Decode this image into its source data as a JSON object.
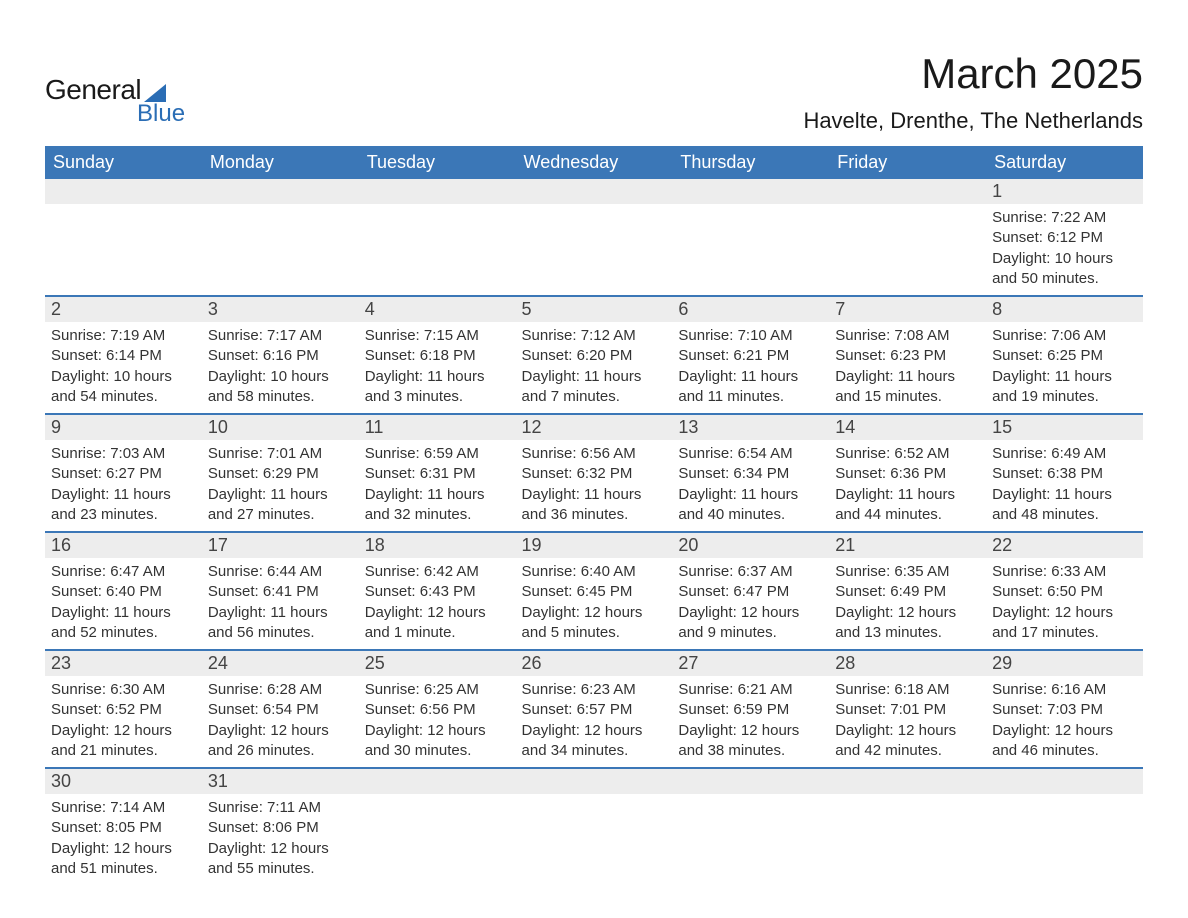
{
  "logo": {
    "word1": "General",
    "word2": "Blue"
  },
  "title": "March 2025",
  "location": "Havelte, Drenthe, The Netherlands",
  "colors": {
    "header_bg": "#3b77b7",
    "header_text": "#ffffff",
    "daynum_bg": "#ededed",
    "row_border": "#3b77b7",
    "text": "#333333",
    "logo_accent": "#2a6db5"
  },
  "fonts": {
    "title_pt": 42,
    "location_pt": 22,
    "weekday_pt": 18,
    "daynum_pt": 18,
    "body_pt": 15
  },
  "weekdays": [
    "Sunday",
    "Monday",
    "Tuesday",
    "Wednesday",
    "Thursday",
    "Friday",
    "Saturday"
  ],
  "weeks": [
    [
      null,
      null,
      null,
      null,
      null,
      null,
      {
        "day": "1",
        "sunrise": "Sunrise: 7:22 AM",
        "sunset": "Sunset: 6:12 PM",
        "daylight1": "Daylight: 10 hours",
        "daylight2": "and 50 minutes."
      }
    ],
    [
      {
        "day": "2",
        "sunrise": "Sunrise: 7:19 AM",
        "sunset": "Sunset: 6:14 PM",
        "daylight1": "Daylight: 10 hours",
        "daylight2": "and 54 minutes."
      },
      {
        "day": "3",
        "sunrise": "Sunrise: 7:17 AM",
        "sunset": "Sunset: 6:16 PM",
        "daylight1": "Daylight: 10 hours",
        "daylight2": "and 58 minutes."
      },
      {
        "day": "4",
        "sunrise": "Sunrise: 7:15 AM",
        "sunset": "Sunset: 6:18 PM",
        "daylight1": "Daylight: 11 hours",
        "daylight2": "and 3 minutes."
      },
      {
        "day": "5",
        "sunrise": "Sunrise: 7:12 AM",
        "sunset": "Sunset: 6:20 PM",
        "daylight1": "Daylight: 11 hours",
        "daylight2": "and 7 minutes."
      },
      {
        "day": "6",
        "sunrise": "Sunrise: 7:10 AM",
        "sunset": "Sunset: 6:21 PM",
        "daylight1": "Daylight: 11 hours",
        "daylight2": "and 11 minutes."
      },
      {
        "day": "7",
        "sunrise": "Sunrise: 7:08 AM",
        "sunset": "Sunset: 6:23 PM",
        "daylight1": "Daylight: 11 hours",
        "daylight2": "and 15 minutes."
      },
      {
        "day": "8",
        "sunrise": "Sunrise: 7:06 AM",
        "sunset": "Sunset: 6:25 PM",
        "daylight1": "Daylight: 11 hours",
        "daylight2": "and 19 minutes."
      }
    ],
    [
      {
        "day": "9",
        "sunrise": "Sunrise: 7:03 AM",
        "sunset": "Sunset: 6:27 PM",
        "daylight1": "Daylight: 11 hours",
        "daylight2": "and 23 minutes."
      },
      {
        "day": "10",
        "sunrise": "Sunrise: 7:01 AM",
        "sunset": "Sunset: 6:29 PM",
        "daylight1": "Daylight: 11 hours",
        "daylight2": "and 27 minutes."
      },
      {
        "day": "11",
        "sunrise": "Sunrise: 6:59 AM",
        "sunset": "Sunset: 6:31 PM",
        "daylight1": "Daylight: 11 hours",
        "daylight2": "and 32 minutes."
      },
      {
        "day": "12",
        "sunrise": "Sunrise: 6:56 AM",
        "sunset": "Sunset: 6:32 PM",
        "daylight1": "Daylight: 11 hours",
        "daylight2": "and 36 minutes."
      },
      {
        "day": "13",
        "sunrise": "Sunrise: 6:54 AM",
        "sunset": "Sunset: 6:34 PM",
        "daylight1": "Daylight: 11 hours",
        "daylight2": "and 40 minutes."
      },
      {
        "day": "14",
        "sunrise": "Sunrise: 6:52 AM",
        "sunset": "Sunset: 6:36 PM",
        "daylight1": "Daylight: 11 hours",
        "daylight2": "and 44 minutes."
      },
      {
        "day": "15",
        "sunrise": "Sunrise: 6:49 AM",
        "sunset": "Sunset: 6:38 PM",
        "daylight1": "Daylight: 11 hours",
        "daylight2": "and 48 minutes."
      }
    ],
    [
      {
        "day": "16",
        "sunrise": "Sunrise: 6:47 AM",
        "sunset": "Sunset: 6:40 PM",
        "daylight1": "Daylight: 11 hours",
        "daylight2": "and 52 minutes."
      },
      {
        "day": "17",
        "sunrise": "Sunrise: 6:44 AM",
        "sunset": "Sunset: 6:41 PM",
        "daylight1": "Daylight: 11 hours",
        "daylight2": "and 56 minutes."
      },
      {
        "day": "18",
        "sunrise": "Sunrise: 6:42 AM",
        "sunset": "Sunset: 6:43 PM",
        "daylight1": "Daylight: 12 hours",
        "daylight2": "and 1 minute."
      },
      {
        "day": "19",
        "sunrise": "Sunrise: 6:40 AM",
        "sunset": "Sunset: 6:45 PM",
        "daylight1": "Daylight: 12 hours",
        "daylight2": "and 5 minutes."
      },
      {
        "day": "20",
        "sunrise": "Sunrise: 6:37 AM",
        "sunset": "Sunset: 6:47 PM",
        "daylight1": "Daylight: 12 hours",
        "daylight2": "and 9 minutes."
      },
      {
        "day": "21",
        "sunrise": "Sunrise: 6:35 AM",
        "sunset": "Sunset: 6:49 PM",
        "daylight1": "Daylight: 12 hours",
        "daylight2": "and 13 minutes."
      },
      {
        "day": "22",
        "sunrise": "Sunrise: 6:33 AM",
        "sunset": "Sunset: 6:50 PM",
        "daylight1": "Daylight: 12 hours",
        "daylight2": "and 17 minutes."
      }
    ],
    [
      {
        "day": "23",
        "sunrise": "Sunrise: 6:30 AM",
        "sunset": "Sunset: 6:52 PM",
        "daylight1": "Daylight: 12 hours",
        "daylight2": "and 21 minutes."
      },
      {
        "day": "24",
        "sunrise": "Sunrise: 6:28 AM",
        "sunset": "Sunset: 6:54 PM",
        "daylight1": "Daylight: 12 hours",
        "daylight2": "and 26 minutes."
      },
      {
        "day": "25",
        "sunrise": "Sunrise: 6:25 AM",
        "sunset": "Sunset: 6:56 PM",
        "daylight1": "Daylight: 12 hours",
        "daylight2": "and 30 minutes."
      },
      {
        "day": "26",
        "sunrise": "Sunrise: 6:23 AM",
        "sunset": "Sunset: 6:57 PM",
        "daylight1": "Daylight: 12 hours",
        "daylight2": "and 34 minutes."
      },
      {
        "day": "27",
        "sunrise": "Sunrise: 6:21 AM",
        "sunset": "Sunset: 6:59 PM",
        "daylight1": "Daylight: 12 hours",
        "daylight2": "and 38 minutes."
      },
      {
        "day": "28",
        "sunrise": "Sunrise: 6:18 AM",
        "sunset": "Sunset: 7:01 PM",
        "daylight1": "Daylight: 12 hours",
        "daylight2": "and 42 minutes."
      },
      {
        "day": "29",
        "sunrise": "Sunrise: 6:16 AM",
        "sunset": "Sunset: 7:03 PM",
        "daylight1": "Daylight: 12 hours",
        "daylight2": "and 46 minutes."
      }
    ],
    [
      {
        "day": "30",
        "sunrise": "Sunrise: 7:14 AM",
        "sunset": "Sunset: 8:05 PM",
        "daylight1": "Daylight: 12 hours",
        "daylight2": "and 51 minutes."
      },
      {
        "day": "31",
        "sunrise": "Sunrise: 7:11 AM",
        "sunset": "Sunset: 8:06 PM",
        "daylight1": "Daylight: 12 hours",
        "daylight2": "and 55 minutes."
      },
      null,
      null,
      null,
      null,
      null
    ]
  ]
}
